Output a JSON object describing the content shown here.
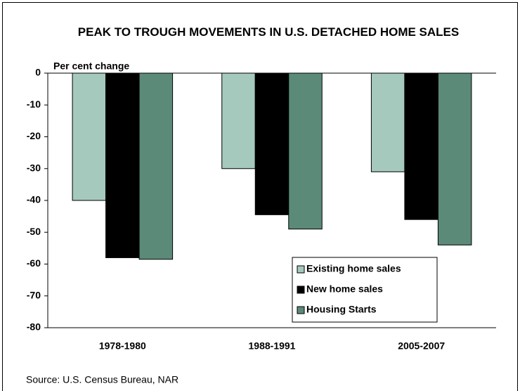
{
  "chart_data": {
    "type": "bar",
    "title": "PEAK TO TROUGH MOVEMENTS IN U.S. DETACHED HOME SALES",
    "y_label": "Per cent change",
    "source": "Source: U.S. Census Bureau, NAR",
    "categories": [
      "1978-1980",
      "1988-1991",
      "2005-2007"
    ],
    "series": [
      {
        "name": "Existing home sales",
        "color": "#a6c9bd",
        "values": [
          -40,
          -30,
          -31
        ]
      },
      {
        "name": "New home sales",
        "color": "#000000",
        "values": [
          -58,
          -44.5,
          -46
        ]
      },
      {
        "name": "Housing Starts",
        "color": "#5b8a78",
        "values": [
          -58.5,
          -49,
          -54
        ]
      }
    ],
    "ylim": [
      -80,
      0
    ],
    "yticks": [
      -80,
      -70,
      -60,
      -50,
      -40,
      -30,
      -20,
      -10,
      0
    ],
    "legend": "lower right",
    "grid": false
  }
}
